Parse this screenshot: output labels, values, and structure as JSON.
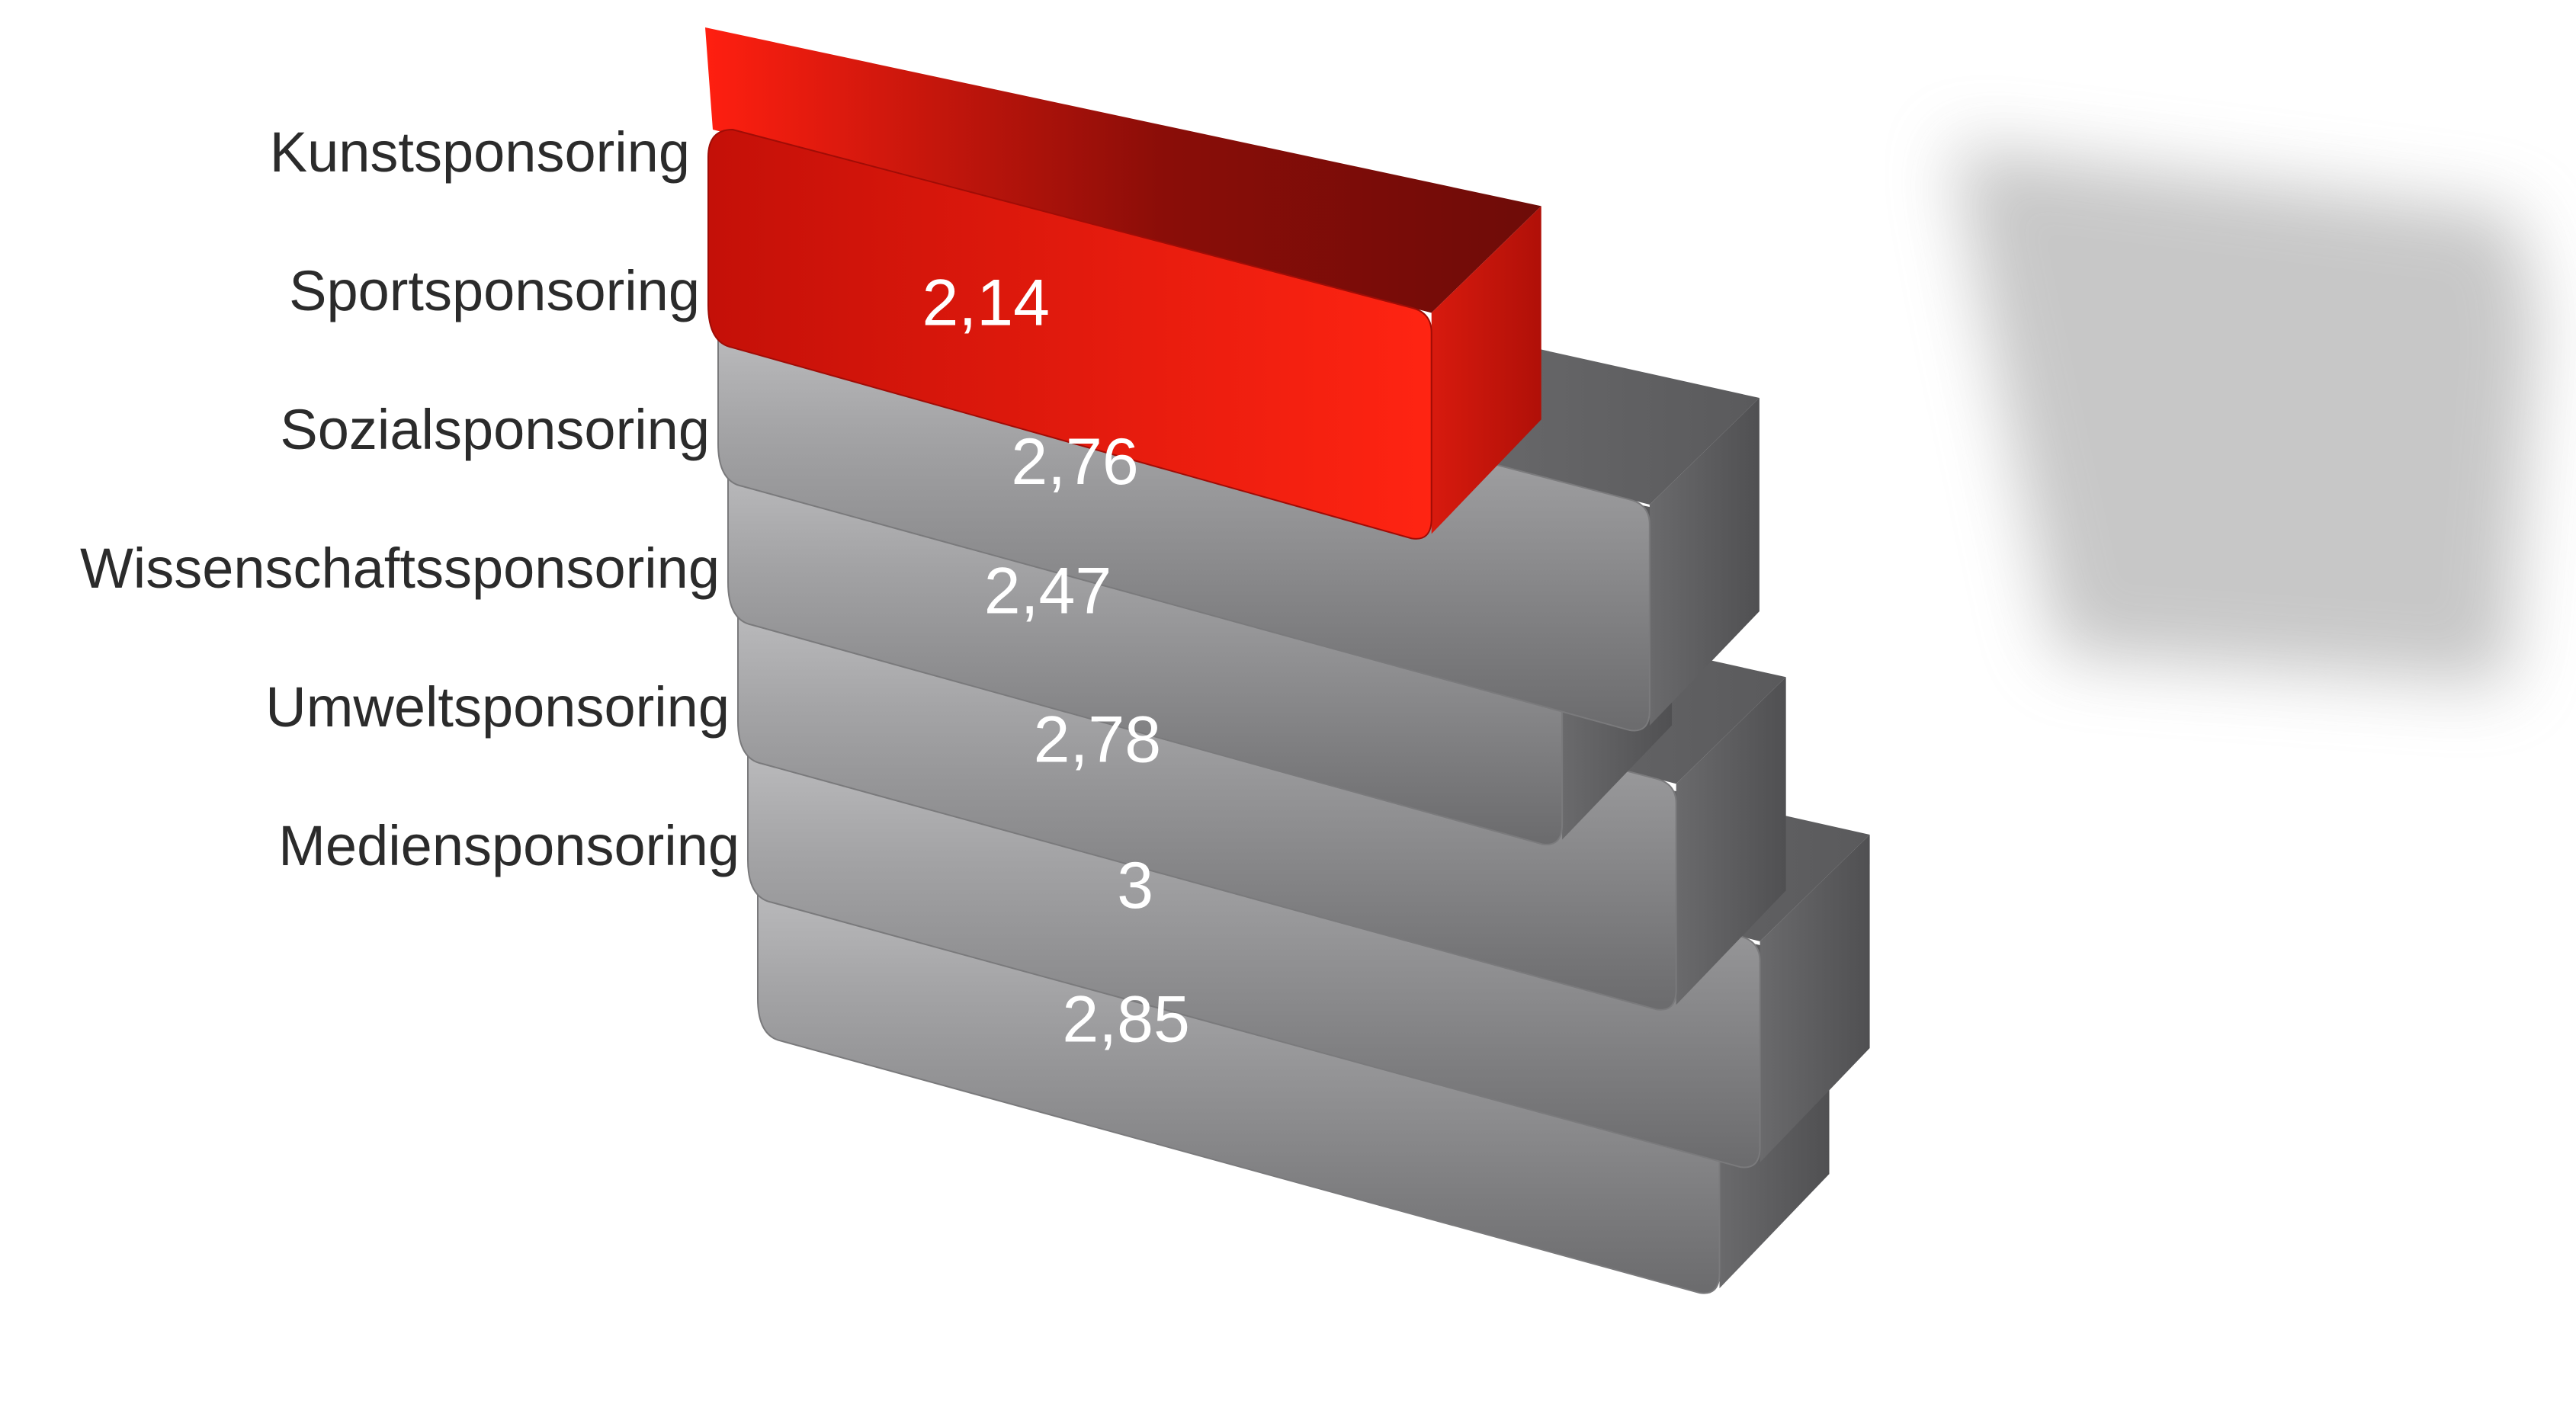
{
  "chart_data": {
    "type": "bar",
    "orientation": "horizontal",
    "style": "3d-perspective",
    "categories": [
      "Kunstsponsoring",
      "Sportsponsoring",
      "Sozialsponsoring",
      "Wissenschaftssponsoring",
      "Umweltsponsoring",
      "Mediensponsoring"
    ],
    "values": [
      2.14,
      2.76,
      2.47,
      2.78,
      3,
      2.85
    ],
    "value_labels": [
      "2,14",
      "2,76",
      "2,47",
      "2,78",
      "3",
      "2,85"
    ],
    "highlight_index": 0,
    "colors": {
      "highlight": "#d4140c",
      "default": "#8a8a8c"
    },
    "grid": false,
    "legend": "none"
  }
}
